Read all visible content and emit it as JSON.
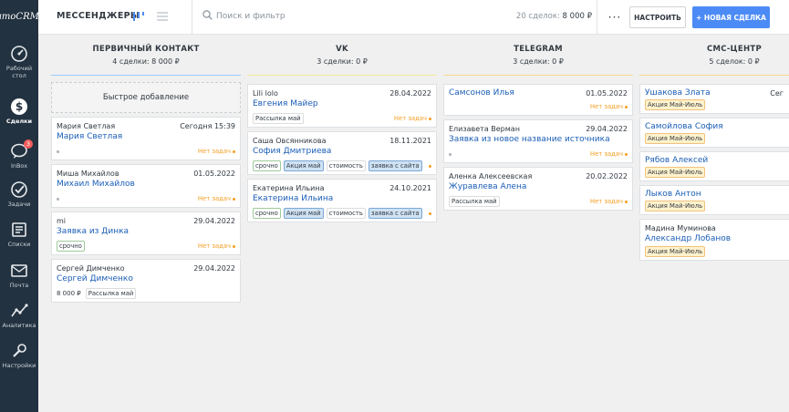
{
  "app": {
    "logo_text": "amoCRM.",
    "colors": {
      "accent": "#4c8bf5",
      "sidebar": "#233240",
      "link": "#1b5eb6",
      "warning": "#f59e23"
    }
  },
  "sidebar": {
    "items": [
      {
        "label": "Рабочий стол",
        "icon": "dashboard-icon"
      },
      {
        "label": "Сделки",
        "icon": "deals-icon",
        "active": true
      },
      {
        "label": "InBox",
        "icon": "chat-icon",
        "badge": "3"
      },
      {
        "label": "Задачи",
        "icon": "tasks-icon"
      },
      {
        "label": "Списки",
        "icon": "lists-icon"
      },
      {
        "label": "Почта",
        "icon": "mail-icon"
      },
      {
        "label": "Аналитика",
        "icon": "analytics-icon"
      },
      {
        "label": "Настройки",
        "icon": "settings-icon"
      }
    ]
  },
  "header": {
    "pipeline_title": "МЕССЕНДЖЕРЫ",
    "search_placeholder": "Поиск и фильтр",
    "deals_count": "20 сделок:",
    "deals_sum": "8 000 ₽",
    "more_label": "···",
    "setup_label": "НАСТРОИТЬ",
    "new_deal_label": "+ НОВАЯ СДЕЛКА"
  },
  "columns": [
    {
      "name": "ПЕРВИЧНЫЙ КОНТАКТ",
      "meta": "4 сделки: 8 000 ₽",
      "quick_add": "Быстрое добавление",
      "cards": [
        {
          "contact": "Мария Светлая",
          "date": "Сегодня 15:39",
          "title": "Мария Светлая",
          "status": "Нет задач"
        },
        {
          "contact": "Миша Михайлов",
          "date": "01.05.2022",
          "title": "Михаил Михайлов",
          "status": "Нет задач"
        },
        {
          "contact": "mi",
          "date": "29.04.2022",
          "title": "Заявка из Динка",
          "tags": [
            "срочно"
          ],
          "status": "Нет задач"
        },
        {
          "contact": "Сергей Димченко",
          "date": "29.04.2022",
          "title": "Сергей Димченко",
          "amount": "8 000 ₽",
          "tags": [
            "Рассылка май"
          ]
        }
      ]
    },
    {
      "name": "VK",
      "meta": "3 сделки: 0 ₽",
      "cards": [
        {
          "contact": "Lili lolo",
          "date": "28.04.2022",
          "title": "Евгения Майер",
          "tags": [
            "Рассылка май"
          ],
          "status": "Нет задач"
        },
        {
          "contact": "Саша Овсянникова",
          "date": "18.11.2021",
          "title": "София Дмитриева",
          "tags": [
            "срочно",
            "Акция май",
            "стоимость",
            "заявка с сайта"
          ]
        },
        {
          "contact": "Екатерина Ильина",
          "date": "24.10.2021",
          "title": "Екатерина Ильина",
          "tags": [
            "срочно",
            "Акция май",
            "стоимость",
            "заявка с сайта"
          ]
        }
      ]
    },
    {
      "name": "TELEGRAM",
      "meta": "3 сделки: 0 ₽",
      "cards": [
        {
          "contact": "Самсонов Илья",
          "date": "01.05.2022",
          "title": "",
          "status": "Нет задач"
        },
        {
          "contact": "Елизавета Верман",
          "date": "29.04.2022",
          "title": "Заявка из новое название источника",
          "status": "Нет задач"
        },
        {
          "contact": "Аленка Алексеевская",
          "date": "20.02.2022",
          "title": "Журавлева Алена",
          "tags": [
            "Рассылка май"
          ],
          "status": "Нет задач"
        }
      ]
    },
    {
      "name": "СМС-ЦЕНТР",
      "meta": "5 сделок: 0 ₽",
      "cards": [
        {
          "contact": "Ушакова Злата",
          "date": "Сег",
          "tags": [
            "Акция Май-Июль"
          ]
        },
        {
          "contact": "Самойлова София",
          "tags": [
            "Акция Май-Июль"
          ]
        },
        {
          "contact": "Рябов Алексей",
          "tags": [
            "Акция Май-Июль"
          ]
        },
        {
          "contact": "Лыков Антон",
          "tags": [
            "Акция Май-Июль"
          ]
        },
        {
          "contact": "Мадина Муминова",
          "title": "Александр Лобанов",
          "tags": [
            "Акция Май-Июль"
          ]
        }
      ]
    }
  ]
}
